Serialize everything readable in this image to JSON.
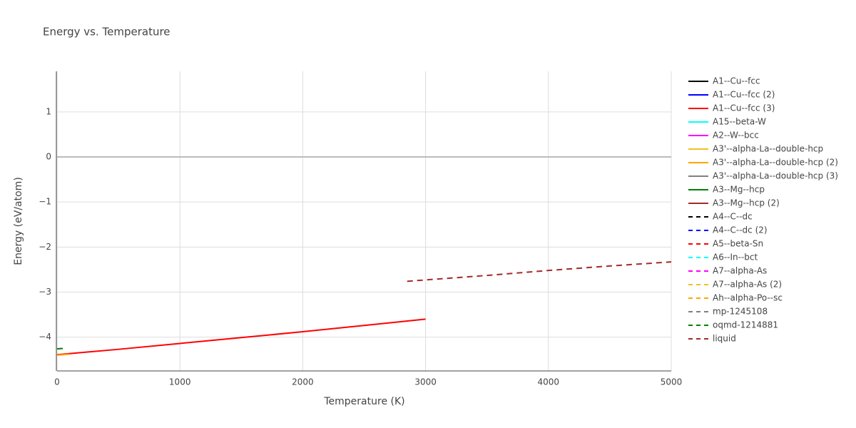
{
  "chart_data": {
    "type": "line",
    "title": "Energy vs. Temperature",
    "x_label": "Temperature (K)",
    "y_label": "Energy (eV/atom)",
    "xlim": [
      0,
      5000
    ],
    "xticks": [
      0,
      1000,
      2000,
      3000,
      4000,
      5000
    ],
    "ylim": [
      -4.75,
      1.9
    ],
    "yticks": [
      {
        "value": -4,
        "label": "−4"
      },
      {
        "value": -3,
        "label": "−3"
      },
      {
        "value": -2,
        "label": "−2"
      },
      {
        "value": -1,
        "label": "−1"
      },
      0,
      1
    ],
    "grid": true,
    "legend": "right",
    "series": [
      {
        "name": "A1--Cu--fcc",
        "color": "#000000",
        "dash": false,
        "x": [],
        "values": []
      },
      {
        "name": "A1--Cu--fcc (2)",
        "color": "#0000ff",
        "dash": false,
        "x": [],
        "values": []
      },
      {
        "name": "A1--Cu--fcc (3)",
        "color": "#ff0000",
        "dash": false,
        "x": [
          0,
          500,
          1000,
          1500,
          2000,
          2500,
          3000
        ],
        "values": [
          -4.39,
          -4.27,
          -4.14,
          -4.01,
          -3.88,
          -3.74,
          -3.6
        ]
      },
      {
        "name": "A15--beta-W",
        "color": "#00ffff",
        "dash": false,
        "x": [],
        "values": []
      },
      {
        "name": "A2--W--bcc",
        "color": "#ff00ff",
        "dash": false,
        "x": [],
        "values": []
      },
      {
        "name": "A3'--alpha-La--double-hcp",
        "color": "#f0c020",
        "dash": false,
        "x": [],
        "values": []
      },
      {
        "name": "A3'--alpha-La--double-hcp (2)",
        "color": "#ffa500",
        "dash": false,
        "x": [
          0,
          100
        ],
        "values": [
          -4.4,
          -4.38
        ]
      },
      {
        "name": "A3'--alpha-La--double-hcp (3)",
        "color": "#808080",
        "dash": false,
        "x": [],
        "values": []
      },
      {
        "name": "A3--Mg--hcp",
        "color": "#008000",
        "dash": false,
        "x": [],
        "values": []
      },
      {
        "name": "A3--Mg--hcp (2)",
        "color": "#a52a2a",
        "dash": false,
        "x": [],
        "values": []
      },
      {
        "name": "A4--C--dc",
        "color": "#000000",
        "dash": true,
        "x": [],
        "values": []
      },
      {
        "name": "A4--C--dc (2)",
        "color": "#0000ff",
        "dash": true,
        "x": [],
        "values": []
      },
      {
        "name": "A5--beta-Sn",
        "color": "#ff0000",
        "dash": true,
        "x": [],
        "values": []
      },
      {
        "name": "A6--In--bct",
        "color": "#00ffff",
        "dash": true,
        "x": [],
        "values": []
      },
      {
        "name": "A7--alpha-As",
        "color": "#ff00ff",
        "dash": true,
        "x": [],
        "values": []
      },
      {
        "name": "A7--alpha-As (2)",
        "color": "#f0c020",
        "dash": true,
        "x": [],
        "values": []
      },
      {
        "name": "Ah--alpha-Po--sc",
        "color": "#ffa500",
        "dash": true,
        "x": [],
        "values": []
      },
      {
        "name": "mp-1245108",
        "color": "#808080",
        "dash": true,
        "x": [],
        "values": []
      },
      {
        "name": "oqmd-1214881",
        "color": "#008000",
        "dash": true,
        "x": [
          0,
          50
        ],
        "values": [
          -4.26,
          -4.25
        ]
      },
      {
        "name": "liquid",
        "color": "#a52a2a",
        "dash": true,
        "x": [
          2850,
          3500,
          4000,
          4500,
          5000
        ],
        "values": [
          -2.76,
          -2.63,
          -2.52,
          -2.42,
          -2.33
        ]
      }
    ]
  }
}
